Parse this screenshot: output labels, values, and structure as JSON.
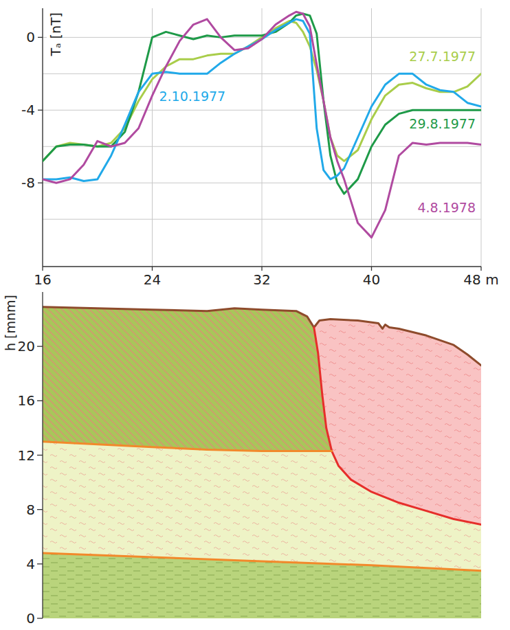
{
  "chart_data": [
    {
      "type": "line",
      "y_label": "Tₐ [nT]",
      "x": [
        16,
        17,
        18,
        19,
        20,
        21,
        22,
        23,
        24,
        25,
        26,
        27,
        28,
        29,
        30,
        31,
        32,
        33,
        34,
        34.5,
        35,
        35.5,
        36,
        36.5,
        37,
        37.5,
        38,
        39,
        40,
        41,
        42,
        43,
        44,
        45,
        46,
        47,
        48
      ],
      "xlim": [
        16,
        48
      ],
      "xticks": [
        16,
        24,
        32,
        40,
        {
          "value": 48,
          "label": "48 m"
        }
      ],
      "ylim": [
        -12.6,
        1.6
      ],
      "yticks": [
        -8,
        -4,
        0
      ],
      "y_gridlines": [
        -10,
        -6,
        -2
      ],
      "grid": true,
      "series": [
        {
          "name": "27.7.1977",
          "color": "#a9cd4a",
          "values": [
            -6.8,
            -6.0,
            -5.8,
            -5.9,
            -6.0,
            -5.8,
            -5.0,
            -3.5,
            -2.3,
            -1.6,
            -1.2,
            -1.2,
            -1.0,
            -0.9,
            -0.9,
            -0.5,
            0.0,
            0.5,
            0.9,
            0.8,
            0.3,
            -0.5,
            -1.8,
            -3.5,
            -5.5,
            -6.5,
            -6.8,
            -6.2,
            -4.5,
            -3.2,
            -2.6,
            -2.5,
            -2.8,
            -3.0,
            -3.0,
            -2.7,
            -2.0
          ]
        },
        {
          "name": "29.8.1977",
          "color": "#1e9a48",
          "values": [
            -6.8,
            -6.0,
            -5.9,
            -5.9,
            -6.0,
            -6.0,
            -5.2,
            -3.0,
            0.0,
            0.3,
            0.1,
            -0.1,
            0.1,
            0.0,
            0.1,
            0.1,
            0.1,
            0.3,
            0.8,
            1.2,
            1.3,
            1.2,
            0.2,
            -3.5,
            -6.5,
            -8.0,
            -8.6,
            -7.8,
            -6.0,
            -4.8,
            -4.2,
            -4.0,
            -4.0,
            -4.0,
            -4.0,
            -4.0,
            -4.0
          ]
        },
        {
          "name": "2.10.1977",
          "color": "#21a9e9",
          "values": [
            -7.8,
            -7.8,
            -7.7,
            -7.9,
            -7.8,
            -6.5,
            -4.8,
            -3.0,
            -2.0,
            -1.9,
            -2.0,
            -2.0,
            -2.0,
            -1.4,
            -0.9,
            -0.5,
            -0.1,
            0.4,
            0.8,
            1.0,
            0.9,
            0.2,
            -5.0,
            -7.3,
            -7.8,
            -7.6,
            -7.2,
            -5.5,
            -3.8,
            -2.6,
            -2.0,
            -2.0,
            -2.6,
            -2.9,
            -3.0,
            -3.6,
            -3.8
          ]
        },
        {
          "name": "4.8.1978",
          "color": "#b04aa0",
          "values": [
            -7.8,
            -8.0,
            -7.8,
            -7.0,
            -5.7,
            -6.0,
            -5.8,
            -5.0,
            -3.2,
            -1.6,
            -0.2,
            0.7,
            1.0,
            0.0,
            -0.7,
            -0.6,
            -0.1,
            0.7,
            1.2,
            1.4,
            1.3,
            0.6,
            -1.5,
            -3.5,
            -5.5,
            -6.8,
            -7.8,
            -10.2,
            -11.0,
            -9.5,
            -6.5,
            -5.8,
            -5.9,
            -5.8,
            -5.8,
            -5.8,
            -5.9
          ]
        }
      ]
    },
    {
      "type": "cross_section",
      "y_label": "h [mnm]",
      "xlim": [
        16,
        48
      ],
      "ylim": [
        0,
        24
      ],
      "yticks": [
        0,
        4,
        8,
        12,
        16,
        20
      ],
      "tick_labels": "y",
      "series": [
        {
          "type": "area",
          "color": "#a8c65a",
          "x": [
            16,
            20,
            24,
            28,
            30,
            32,
            34.5,
            35.3,
            35.8,
            36.1,
            36.4,
            36.7,
            37.1,
            35,
            32,
            28,
            24,
            20,
            16
          ],
          "values": [
            22.9,
            22.8,
            22.7,
            22.6,
            22.8,
            22.7,
            22.6,
            22.2,
            21.4,
            19.5,
            16.5,
            14.0,
            12.3,
            12.3,
            12.3,
            12.4,
            12.6,
            12.8,
            13.0
          ]
        },
        {
          "type": "area",
          "color": "#f9c3c3",
          "x": [
            35.8,
            36.2,
            37,
            39,
            40.5,
            40.8,
            41,
            41.3,
            42,
            44,
            46,
            47,
            48,
            48,
            46,
            44,
            42,
            40,
            38.5,
            37.6,
            37.1,
            36.7,
            36.4,
            36.1
          ],
          "values": [
            21.4,
            21.9,
            22.0,
            21.9,
            21.7,
            21.3,
            21.6,
            21.4,
            21.3,
            20.8,
            20.1,
            19.4,
            18.6,
            6.9,
            7.3,
            7.9,
            8.5,
            9.3,
            10.2,
            11.2,
            12.3,
            14.0,
            16.5,
            19.5
          ]
        },
        {
          "type": "area",
          "color": "#eef3c6",
          "x": [
            16,
            20,
            24,
            28,
            32,
            35,
            37.1,
            37.6,
            38.5,
            40,
            42,
            44,
            46,
            48,
            48,
            40,
            32,
            24,
            16
          ],
          "values": [
            13.0,
            12.8,
            12.6,
            12.4,
            12.3,
            12.3,
            12.3,
            11.2,
            10.2,
            9.3,
            8.5,
            7.9,
            7.3,
            6.9,
            3.5,
            3.9,
            4.2,
            4.5,
            4.8
          ]
        },
        {
          "type": "area",
          "color": "#b9d47c",
          "x": [
            16,
            24,
            32,
            40,
            48,
            48,
            16
          ],
          "values": [
            4.8,
            4.5,
            4.2,
            3.9,
            3.5,
            0,
            0
          ]
        },
        {
          "type": "line",
          "color": "#8e4b2c",
          "x": [
            16,
            20,
            24,
            28,
            30,
            32,
            34.5,
            35.3,
            35.8,
            36.2,
            37,
            39,
            40.5,
            40.8,
            41,
            41.3,
            42,
            44,
            46,
            47,
            48
          ],
          "values": [
            22.9,
            22.8,
            22.7,
            22.6,
            22.8,
            22.7,
            22.6,
            22.2,
            21.4,
            21.9,
            22.0,
            21.9,
            21.7,
            21.3,
            21.6,
            21.4,
            21.3,
            20.8,
            20.1,
            19.4,
            18.6
          ]
        },
        {
          "type": "line",
          "color": "#e62e2a",
          "x": [
            35.8,
            36.1,
            36.4,
            36.7,
            37.1,
            37.6,
            38.5,
            40,
            42,
            44,
            46,
            48
          ],
          "values": [
            21.4,
            19.5,
            16.5,
            14.0,
            12.3,
            11.2,
            10.2,
            9.3,
            8.5,
            7.9,
            7.3,
            6.9
          ]
        },
        {
          "type": "line",
          "color": "#f2892b",
          "x": [
            16,
            20,
            24,
            28,
            32,
            35,
            37.1
          ],
          "values": [
            13.0,
            12.8,
            12.6,
            12.4,
            12.3,
            12.3,
            12.3
          ]
        },
        {
          "type": "line",
          "color": "#f2892b",
          "x": [
            16,
            24,
            32,
            40,
            48
          ],
          "values": [
            4.8,
            4.5,
            4.2,
            3.9,
            3.5
          ]
        }
      ]
    }
  ]
}
